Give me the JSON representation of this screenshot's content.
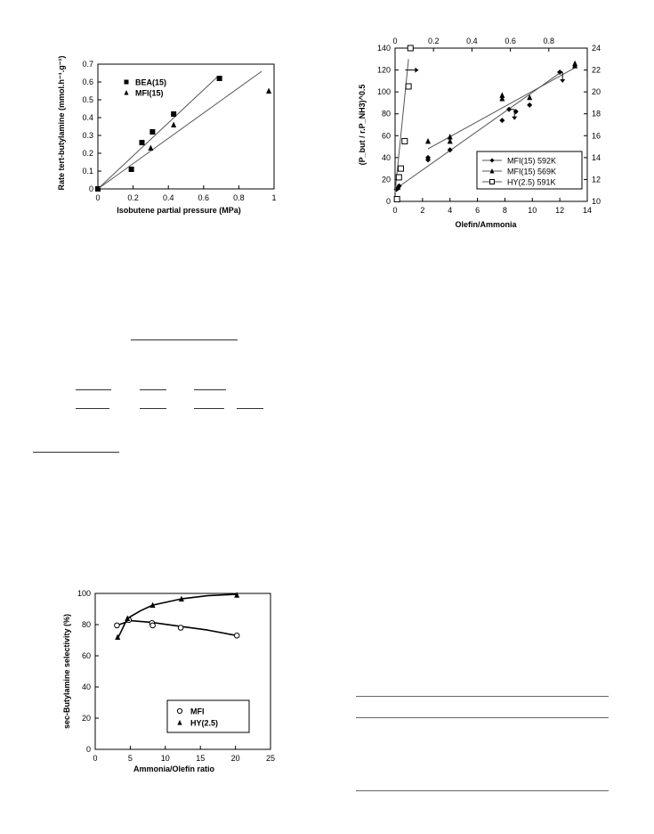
{
  "page": {
    "kind": "scanned journal page with three figures"
  },
  "chart_data": [
    {
      "id": "fig1",
      "type": "scatter",
      "xlabel": "Isobutene partial pressure (MPa)",
      "ylabel": "Rate tert-butylamine (mmol.h⁻¹.g⁻¹)",
      "xlim": [
        0,
        1
      ],
      "ylim": [
        0,
        0.7
      ],
      "xticks": [
        "0",
        "0.2",
        "0.4",
        "0.6",
        "0.8",
        "1"
      ],
      "yticks": [
        "0",
        "0.1",
        "0.2",
        "0.3",
        "0.4",
        "0.5",
        "0.6",
        "0.7"
      ],
      "legend": "top-left",
      "series": [
        {
          "name": "BEA(15)",
          "marker": "square",
          "x": [
            0,
            0.19,
            0.25,
            0.31,
            0.43,
            0.69
          ],
          "y": [
            0,
            0.11,
            0.26,
            0.32,
            0.42,
            0.62
          ],
          "fit": [
            [
              0,
              0
            ],
            [
              0.68,
              0.63
            ]
          ]
        },
        {
          "name": "MFI(15)",
          "marker": "triangle",
          "x": [
            0,
            0.3,
            0.43,
            0.97
          ],
          "y": [
            0,
            0.23,
            0.36,
            0.55
          ],
          "fit": [
            [
              0,
              0
            ],
            [
              0.93,
              0.66
            ]
          ]
        }
      ]
    },
    {
      "id": "fig2",
      "type": "scatter",
      "xlabel": "Olefin/Ammonia",
      "ylabel": "(P_but / r.P_NH3)^0.5",
      "xlim": [
        0,
        14
      ],
      "ylim": [
        0,
        140
      ],
      "x2lim": [
        0,
        1
      ],
      "y2lim": [
        10,
        24
      ],
      "xticks": [
        "0",
        "2",
        "4",
        "6",
        "8",
        "10",
        "12",
        "14"
      ],
      "yticks": [
        "0",
        "20",
        "40",
        "60",
        "80",
        "100",
        "120",
        "140"
      ],
      "x2ticks": [
        "0",
        "0.2",
        "0.4",
        "0.6",
        "0.8"
      ],
      "y2ticks": [
        "10",
        "12",
        "14",
        "16",
        "18",
        "20",
        "22",
        "24"
      ],
      "legend": "bottom-right",
      "series": [
        {
          "name": "MFI(15) 592K",
          "marker": "diamond",
          "axis": "primary",
          "x": [
            0.1,
            0.2,
            0.3,
            2.4,
            2.4,
            4,
            7.8,
            8.3,
            8.8,
            9.8,
            12
          ],
          "y": [
            11,
            12,
            14,
            38,
            40,
            47,
            74,
            84,
            82,
            88,
            118
          ],
          "fit": [
            [
              0,
              11
            ],
            [
              12.2,
              119
            ]
          ]
        },
        {
          "name": "MFI(15) 569K",
          "marker": "triangle",
          "axis": "primary",
          "x": [
            0.2,
            2.4,
            4,
            4,
            7.8,
            7.8,
            9.8,
            13.1,
            13.1
          ],
          "y": [
            13,
            55,
            55,
            59,
            94,
            97,
            95,
            124,
            126
          ],
          "fit": [
            [
              2.4,
              48
            ],
            [
              13.1,
              122
            ]
          ]
        },
        {
          "name": "HY(2.5) 591K",
          "marker": "open-square",
          "axis": "secondary",
          "x": [
            0.01,
            0.02,
            0.03,
            0.05,
            0.07,
            0.08
          ],
          "y": [
            10.2,
            12.2,
            13.0,
            15.5,
            20.5,
            24.0
          ],
          "fit": [
            [
              0,
              10.8
            ],
            [
              0.07,
              23.0
            ]
          ]
        }
      ],
      "arrows": [
        {
          "x": 1.0,
          "y": 120,
          "dir": "right"
        },
        {
          "x": 8.7,
          "y": 84,
          "dir": "down"
        },
        {
          "x": 12.2,
          "y": 118,
          "dir": "down"
        }
      ]
    },
    {
      "id": "fig3",
      "type": "line",
      "xlabel": "Ammonia/Olefin ratio",
      "ylabel": "sec-Butylamine selectivity (%)",
      "xlim": [
        0,
        25
      ],
      "ylim": [
        0,
        100
      ],
      "xticks": [
        "0",
        "5",
        "10",
        "15",
        "20",
        "25"
      ],
      "yticks": [
        "0",
        "20",
        "40",
        "60",
        "80",
        "100"
      ],
      "legend": "bottom-right",
      "series": [
        {
          "name": "MFI",
          "marker": "open-circle",
          "x": [
            3.1,
            4.8,
            8.1,
            8.2,
            12.2,
            20.2
          ],
          "y": [
            79.5,
            83,
            81,
            79.5,
            78,
            73
          ],
          "curve": [
            [
              3.1,
              79.5
            ],
            [
              5,
              82.5
            ],
            [
              8,
              81.5
            ],
            [
              12,
              79
            ],
            [
              16,
              76.5
            ],
            [
              20.2,
              73
            ]
          ]
        },
        {
          "name": "HY(2.5)",
          "marker": "triangle",
          "x": [
            3.2,
            4.6,
            8.2,
            12.3,
            20.2
          ],
          "y": [
            72,
            84,
            92.5,
            96.5,
            99
          ],
          "curve": [
            [
              3.2,
              71
            ],
            [
              4.6,
              84
            ],
            [
              6.5,
              89
            ],
            [
              8.2,
              92.5
            ],
            [
              12.3,
              96.5
            ],
            [
              16,
              98.5
            ],
            [
              20.2,
              99.5
            ]
          ]
        }
      ]
    }
  ]
}
